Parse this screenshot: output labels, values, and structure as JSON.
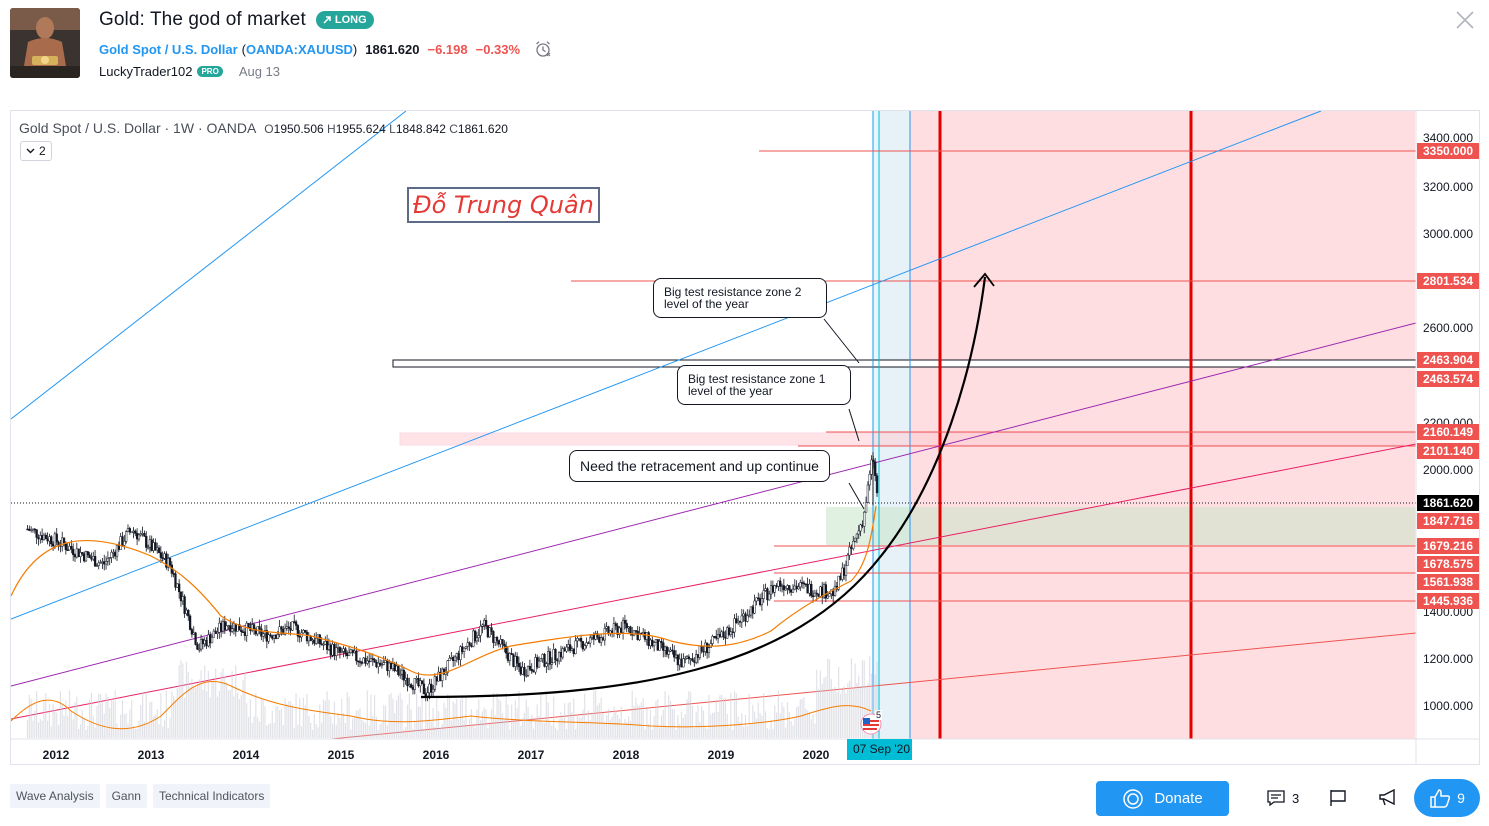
{
  "header": {
    "title": "Gold: The god of market",
    "direction_badge": "LONG",
    "symbol_name": "Gold Spot / U.S. Dollar",
    "symbol_code": "OANDA:XAUUSD",
    "paren_open": "(",
    "paren_close": ")",
    "price": "1861.620",
    "change_abs": "−6.198",
    "change_pct": "−0.33%",
    "author": "LuckyTrader102",
    "pro_badge": "PRO",
    "date": "Aug 13"
  },
  "chart": {
    "legend_symbol": "Gold Spot / U.S. Dollar · 1W · OANDA",
    "open_key": "O",
    "open": "1950.506",
    "high_key": "H",
    "high": "1955.624",
    "low_key": "L",
    "low": "1848.842",
    "close_key": "C",
    "close": "1861.620",
    "indicator_count": "2",
    "watermark": "Đỗ Trung Quân",
    "callout_zone2_line1": "Big test resistance zone 2",
    "callout_zone2_line2": "level of the year",
    "callout_zone1_line1": "Big test resistance zone 1",
    "callout_zone1_line2": "level of the year",
    "callout_retracement": "Need the retracement and up continue",
    "cursor_date": "07 Sep '20",
    "event_count": "5",
    "colors": {
      "up_red": "#ef5350",
      "current_price": "#000000",
      "zone_pink": "#ffcdd2",
      "accent_blue": "#2196f3",
      "vertical_red": "#e00000"
    }
  },
  "chart_data": {
    "type": "candlestick",
    "symbol": "Gold Spot / U.S. Dollar",
    "timeframe": "1W",
    "y_axis_ticks": [
      "3400.000",
      "3200.000",
      "3000.000",
      "2600.000",
      "2200.000",
      "2000.000",
      "1400.000",
      "1200.000",
      "1000.000"
    ],
    "x_axis_ticks": [
      "2012",
      "2013",
      "2014",
      "2015",
      "2016",
      "2017",
      "2018",
      "2019",
      "2020"
    ],
    "price_labels": [
      {
        "value": "3350.000",
        "color": "#ef5350"
      },
      {
        "value": "2801.534",
        "color": "#ef5350"
      },
      {
        "value": "2463.904",
        "color": "#ef5350"
      },
      {
        "value": "2463.574",
        "color": "#ef5350"
      },
      {
        "value": "2160.149",
        "color": "#ef5350"
      },
      {
        "value": "2101.140",
        "color": "#ef5350"
      },
      {
        "value": "1861.620",
        "color": "#000000"
      },
      {
        "value": "1847.716",
        "color": "#ef5350"
      },
      {
        "value": "1679.216",
        "color": "#ef5350"
      },
      {
        "value": "1678.575",
        "color": "#ef5350"
      },
      {
        "value": "1561.938",
        "color": "#ef5350"
      },
      {
        "value": "1445.936",
        "color": "#ef5350"
      }
    ],
    "approx_close_path": [
      {
        "x": 2011.7,
        "y": 1750
      },
      {
        "x": 2012.0,
        "y": 1700
      },
      {
        "x": 2012.5,
        "y": 1600
      },
      {
        "x": 2012.8,
        "y": 1750
      },
      {
        "x": 2013.2,
        "y": 1600
      },
      {
        "x": 2013.5,
        "y": 1250
      },
      {
        "x": 2013.8,
        "y": 1350
      },
      {
        "x": 2014.2,
        "y": 1300
      },
      {
        "x": 2014.5,
        "y": 1330
      },
      {
        "x": 2015.0,
        "y": 1220
      },
      {
        "x": 2015.5,
        "y": 1170
      },
      {
        "x": 2015.9,
        "y": 1060
      },
      {
        "x": 2016.5,
        "y": 1340
      },
      {
        "x": 2016.9,
        "y": 1150
      },
      {
        "x": 2017.5,
        "y": 1260
      },
      {
        "x": 2018.0,
        "y": 1340
      },
      {
        "x": 2018.6,
        "y": 1180
      },
      {
        "x": 2019.0,
        "y": 1290
      },
      {
        "x": 2019.6,
        "y": 1520
      },
      {
        "x": 2020.2,
        "y": 1480
      },
      {
        "x": 2020.5,
        "y": 1800
      },
      {
        "x": 2020.6,
        "y": 2060
      },
      {
        "x": 2020.65,
        "y": 1862
      }
    ]
  },
  "tags": [
    "Wave Analysis",
    "Gann",
    "Technical Indicators"
  ],
  "footer": {
    "donate_label": "Donate",
    "comments_count": "3",
    "likes_count": "9"
  }
}
